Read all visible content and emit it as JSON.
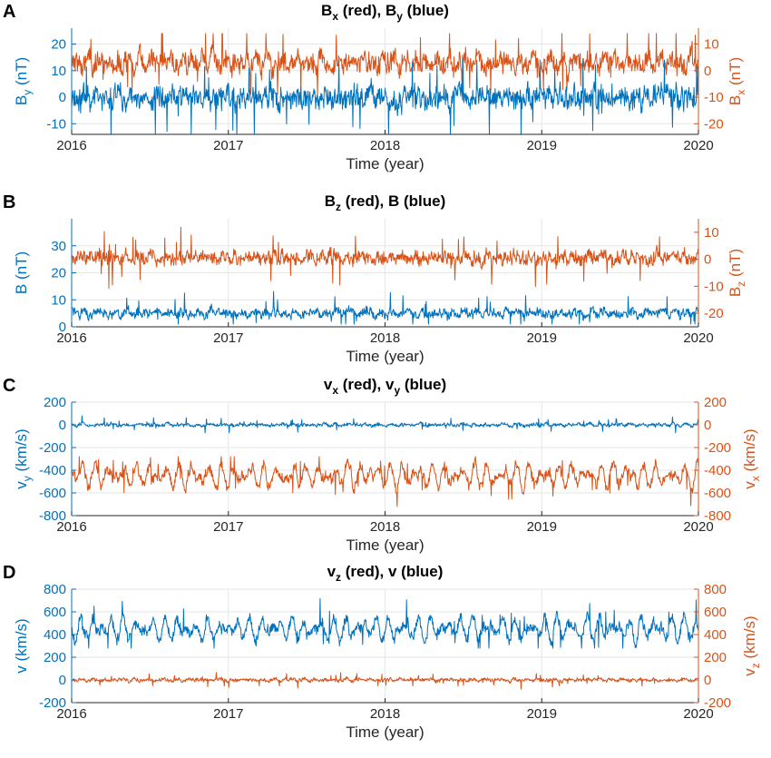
{
  "colors": {
    "red": "#d95319",
    "blue": "#0072bd",
    "axis": "#262626",
    "grid": "#e6e6e6"
  },
  "chart_data": [
    {
      "type": "line",
      "panel_label": "A",
      "title": {
        "pre": "B",
        "s1": "x",
        "mid": " (red), B",
        "s2": "y",
        "post": " (blue)"
      },
      "xlabel": "Time (year)",
      "xlim": [
        2016,
        2020
      ],
      "xticks": [
        "2016",
        "2017",
        "2018",
        "2019",
        "2020"
      ],
      "left_axis": {
        "label": {
          "base": "B",
          "sub": "y",
          "rest": " (nT)"
        },
        "ylim": [
          -14,
          26
        ],
        "ticks": [
          -10,
          0,
          10,
          20
        ]
      },
      "right_axis": {
        "label": {
          "base": "B",
          "sub": "x",
          "rest": " (nT)"
        },
        "ylim": [
          -24,
          16
        ],
        "ticks": [
          -20,
          -10,
          0,
          10
        ]
      },
      "series": [
        {
          "color": "red",
          "axis": "right",
          "min": -9,
          "max": 14,
          "mean_range": [
            1,
            5
          ],
          "spread": 4.5
        },
        {
          "color": "blue",
          "axis": "left",
          "min": -14,
          "max": 14,
          "mean_range": [
            -1,
            1
          ],
          "spread": 5
        }
      ]
    },
    {
      "type": "line",
      "panel_label": "B",
      "title": {
        "pre": "B",
        "s1": "z",
        "mid": " (red), B (blue)",
        "s2": "",
        "post": ""
      },
      "xlabel": "Time (year)",
      "xlim": [
        2016,
        2020
      ],
      "xticks": [
        "2016",
        "2017",
        "2018",
        "2019",
        "2020"
      ],
      "left_axis": {
        "label": {
          "base": "B (nT)",
          "sub": "",
          "rest": ""
        },
        "ylim": [
          0,
          40
        ],
        "ticks": [
          0,
          10,
          20,
          30
        ]
      },
      "right_axis": {
        "label": {
          "base": "B",
          "sub": "z",
          "rest": " (nT)"
        },
        "ylim": [
          -25,
          15
        ],
        "ticks": [
          -20,
          -10,
          0,
          10
        ]
      },
      "series": [
        {
          "color": "red",
          "axis": "right",
          "min": -12,
          "max": 14,
          "mean_range": [
            0,
            1
          ],
          "spread": 3
        },
        {
          "color": "blue",
          "axis": "left",
          "min": 1,
          "max": 18,
          "mean_range": [
            4,
            6
          ],
          "spread": 2
        }
      ]
    },
    {
      "type": "line",
      "panel_label": "C",
      "title": {
        "pre": "v",
        "s1": "x",
        "mid": " (red), v",
        "s2": "y",
        "post": " (blue)"
      },
      "xlabel": "Time (year)",
      "xlim": [
        2016,
        2020
      ],
      "xticks": [
        "2016",
        "2017",
        "2018",
        "2019",
        "2020"
      ],
      "left_axis": {
        "label": {
          "base": "v",
          "sub": "y",
          "rest": " (km/s)"
        },
        "ylim": [
          -800,
          200
        ],
        "ticks": [
          -800,
          -600,
          -400,
          -200,
          0,
          200
        ]
      },
      "right_axis": {
        "label": {
          "base": "v",
          "sub": "x",
          "rest": " (km/s)"
        },
        "ylim": [
          -800,
          200
        ],
        "ticks": [
          -800,
          -600,
          -400,
          -200,
          0,
          200
        ]
      },
      "series": [
        {
          "color": "red",
          "axis": "right",
          "min": -780,
          "max": -280,
          "mean_range": [
            -560,
            -340
          ],
          "spread": 60
        },
        {
          "color": "blue",
          "axis": "left",
          "min": -70,
          "max": 110,
          "mean_range": [
            -10,
            10
          ],
          "spread": 18
        }
      ]
    },
    {
      "type": "line",
      "panel_label": "D",
      "title": {
        "pre": "v",
        "s1": "z",
        "mid": " (red), v (blue)",
        "s2": "",
        "post": ""
      },
      "xlabel": "Time (year)",
      "xlim": [
        2016,
        2020
      ],
      "xticks": [
        "2016",
        "2017",
        "2018",
        "2019",
        "2020"
      ],
      "left_axis": {
        "label": {
          "base": "v (km/s)",
          "sub": "",
          "rest": ""
        },
        "ylim": [
          -200,
          800
        ],
        "ticks": [
          -200,
          0,
          200,
          400,
          600,
          800
        ]
      },
      "right_axis": {
        "label": {
          "base": "v",
          "sub": "z",
          "rest": " (km/s)"
        },
        "ylim": [
          -200,
          800
        ],
        "ticks": [
          -200,
          0,
          200,
          400,
          600,
          800
        ]
      },
      "series": [
        {
          "color": "red",
          "axis": "right",
          "min": -80,
          "max": 120,
          "mean_range": [
            -10,
            10
          ],
          "spread": 18
        },
        {
          "color": "blue",
          "axis": "left",
          "min": 280,
          "max": 800,
          "mean_range": [
            340,
            560
          ],
          "spread": 60
        }
      ]
    }
  ]
}
